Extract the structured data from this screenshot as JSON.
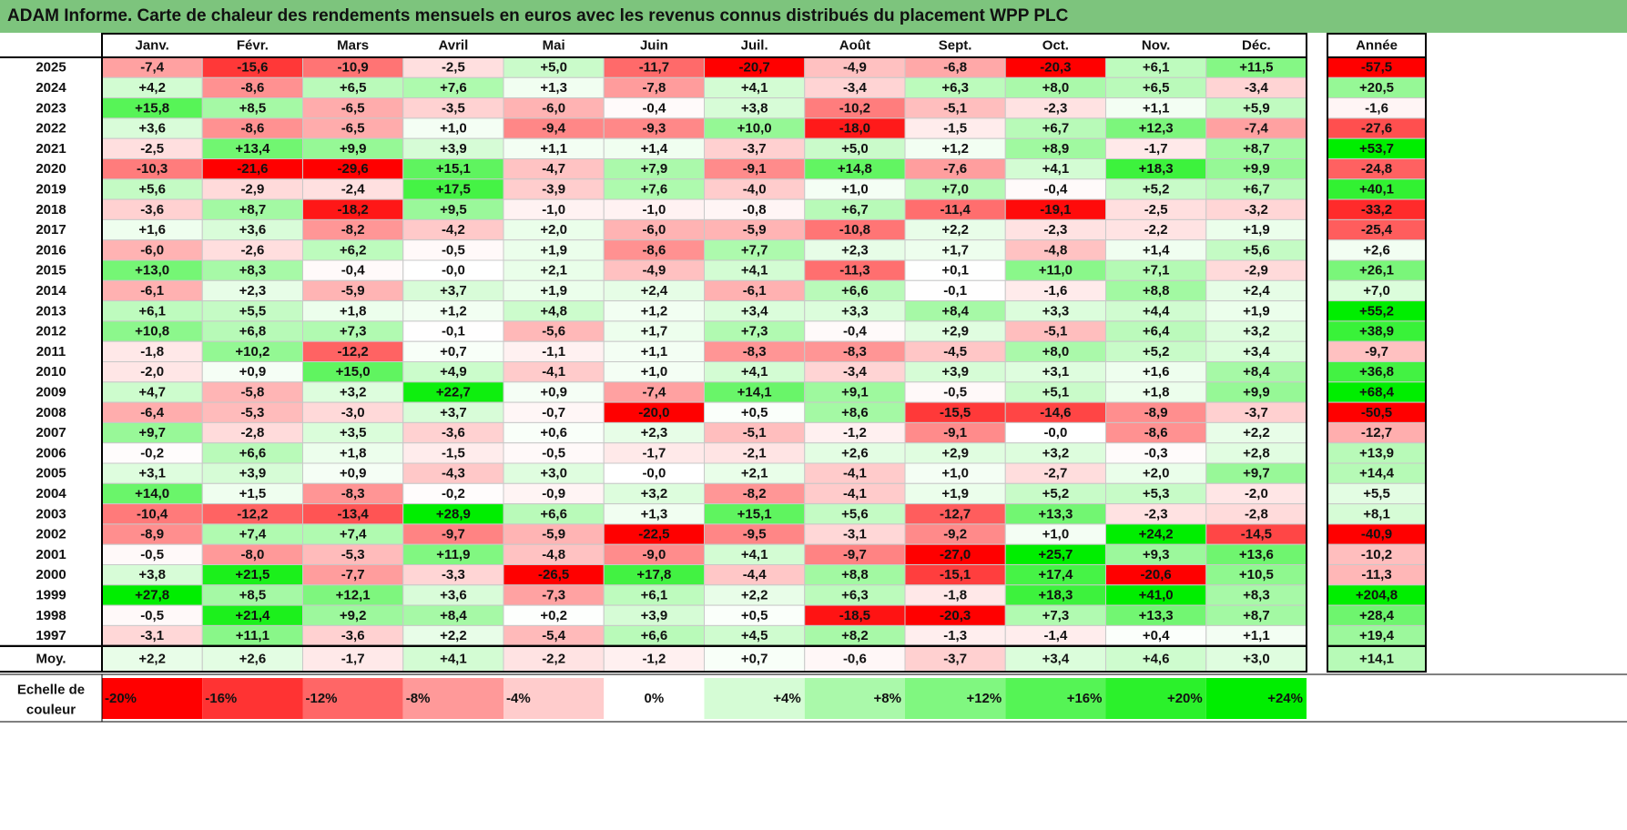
{
  "chart_data": {
    "type": "heatmap",
    "title": "ADAM Informe. Carte de chaleur des rendements mensuels en euros avec les revenus connus distribués du placement WPP PLC",
    "months": [
      "Janv.",
      "Févr.",
      "Mars",
      "Avril",
      "Mai",
      "Juin",
      "Juil.",
      "Août",
      "Sept.",
      "Oct.",
      "Nov.",
      "Déc."
    ],
    "year_header": "Année",
    "years": [
      "2025",
      "2024",
      "2023",
      "2022",
      "2021",
      "2020",
      "2019",
      "2018",
      "2017",
      "2016",
      "2015",
      "2014",
      "2013",
      "2012",
      "2011",
      "2010",
      "2009",
      "2008",
      "2007",
      "2006",
      "2005",
      "2004",
      "2003",
      "2002",
      "2001",
      "2000",
      "1999",
      "1998",
      "1997"
    ],
    "values": [
      [
        "-7,4",
        "-15,6",
        "-10,9",
        "-2,5",
        "+5,0",
        "-11,7",
        "-20,7",
        "-4,9",
        "-6,8",
        "-20,3",
        "+6,1",
        "+11,5"
      ],
      [
        "+4,2",
        "-8,6",
        "+6,5",
        "+7,6",
        "+1,3",
        "-7,8",
        "+4,1",
        "-3,4",
        "+6,3",
        "+8,0",
        "+6,5",
        "-3,4"
      ],
      [
        "+15,8",
        "+8,5",
        "-6,5",
        "-3,5",
        "-6,0",
        "-0,4",
        "+3,8",
        "-10,2",
        "-5,1",
        "-2,3",
        "+1,1",
        "+5,9"
      ],
      [
        "+3,6",
        "-8,6",
        "-6,5",
        "+1,0",
        "-9,4",
        "-9,3",
        "+10,0",
        "-18,0",
        "-1,5",
        "+6,7",
        "+12,3",
        "-7,4"
      ],
      [
        "-2,5",
        "+13,4",
        "+9,9",
        "+3,9",
        "+1,1",
        "+1,4",
        "-3,7",
        "+5,0",
        "+1,2",
        "+8,9",
        "-1,7",
        "+8,7"
      ],
      [
        "-10,3",
        "-21,6",
        "-29,6",
        "+15,1",
        "-4,7",
        "+7,9",
        "-9,1",
        "+14,8",
        "-7,6",
        "+4,1",
        "+18,3",
        "+9,9"
      ],
      [
        "+5,6",
        "-2,9",
        "-2,4",
        "+17,5",
        "-3,9",
        "+7,6",
        "-4,0",
        "+1,0",
        "+7,0",
        "-0,4",
        "+5,2",
        "+6,7"
      ],
      [
        "-3,6",
        "+8,7",
        "-18,2",
        "+9,5",
        "-1,0",
        "-1,0",
        "-0,8",
        "+6,7",
        "-11,4",
        "-19,1",
        "-2,5",
        "-3,2"
      ],
      [
        "+1,6",
        "+3,6",
        "-8,2",
        "-4,2",
        "+2,0",
        "-6,0",
        "-5,9",
        "-10,8",
        "+2,2",
        "-2,3",
        "-2,2",
        "+1,9"
      ],
      [
        "-6,0",
        "-2,6",
        "+6,2",
        "-0,5",
        "+1,9",
        "-8,6",
        "+7,7",
        "+2,3",
        "+1,7",
        "-4,8",
        "+1,4",
        "+5,6"
      ],
      [
        "+13,0",
        "+8,3",
        "-0,4",
        "-0,0",
        "+2,1",
        "-4,9",
        "+4,1",
        "-11,3",
        "+0,1",
        "+11,0",
        "+7,1",
        "-2,9"
      ],
      [
        "-6,1",
        "+2,3",
        "-5,9",
        "+3,7",
        "+1,9",
        "+2,4",
        "-6,1",
        "+6,6",
        "-0,1",
        "-1,6",
        "+8,8",
        "+2,4"
      ],
      [
        "+6,1",
        "+5,5",
        "+1,8",
        "+1,2",
        "+4,8",
        "+1,2",
        "+3,4",
        "+3,3",
        "+8,4",
        "+3,3",
        "+4,4",
        "+1,9"
      ],
      [
        "+10,8",
        "+6,8",
        "+7,3",
        "-0,1",
        "-5,6",
        "+1,7",
        "+7,3",
        "-0,4",
        "+2,9",
        "-5,1",
        "+6,4",
        "+3,2"
      ],
      [
        "-1,8",
        "+10,2",
        "-12,2",
        "+0,7",
        "-1,1",
        "+1,1",
        "-8,3",
        "-8,3",
        "-4,5",
        "+8,0",
        "+5,2",
        "+3,4"
      ],
      [
        "-2,0",
        "+0,9",
        "+15,0",
        "+4,9",
        "-4,1",
        "+1,0",
        "+4,1",
        "-3,4",
        "+3,9",
        "+3,1",
        "+1,6",
        "+8,4"
      ],
      [
        "+4,7",
        "-5,8",
        "+3,2",
        "+22,7",
        "+0,9",
        "-7,4",
        "+14,1",
        "+9,1",
        "-0,5",
        "+5,1",
        "+1,8",
        "+9,9"
      ],
      [
        "-6,4",
        "-5,3",
        "-3,0",
        "+3,7",
        "-0,7",
        "-20,0",
        "+0,5",
        "+8,6",
        "-15,5",
        "-14,6",
        "-8,9",
        "-3,7"
      ],
      [
        "+9,7",
        "-2,8",
        "+3,5",
        "-3,6",
        "+0,6",
        "+2,3",
        "-5,1",
        "-1,2",
        "-9,1",
        "-0,0",
        "-8,6",
        "+2,2"
      ],
      [
        "-0,2",
        "+6,6",
        "+1,8",
        "-1,5",
        "-0,5",
        "-1,7",
        "-2,1",
        "+2,6",
        "+2,9",
        "+3,2",
        "-0,3",
        "+2,8"
      ],
      [
        "+3,1",
        "+3,9",
        "+0,9",
        "-4,3",
        "+3,0",
        "-0,0",
        "+2,1",
        "-4,1",
        "+1,0",
        "-2,7",
        "+2,0",
        "+9,7"
      ],
      [
        "+14,0",
        "+1,5",
        "-8,3",
        "-0,2",
        "-0,9",
        "+3,2",
        "-8,2",
        "-4,1",
        "+1,9",
        "+5,2",
        "+5,3",
        "-2,0"
      ],
      [
        "-10,4",
        "-12,2",
        "-13,4",
        "+28,9",
        "+6,6",
        "+1,3",
        "+15,1",
        "+5,6",
        "-12,7",
        "+13,3",
        "-2,3",
        "-2,8"
      ],
      [
        "-8,9",
        "+7,4",
        "+7,4",
        "-9,7",
        "-5,9",
        "-22,5",
        "-9,5",
        "-3,1",
        "-9,2",
        "+1,0",
        "+24,2",
        "-14,5"
      ],
      [
        "-0,5",
        "-8,0",
        "-5,3",
        "+11,9",
        "-4,8",
        "-9,0",
        "+4,1",
        "-9,7",
        "-27,0",
        "+25,7",
        "+9,3",
        "+13,6"
      ],
      [
        "+3,8",
        "+21,5",
        "-7,7",
        "-3,3",
        "-26,5",
        "+17,8",
        "-4,4",
        "+8,8",
        "-15,1",
        "+17,4",
        "-20,6",
        "+10,5"
      ],
      [
        "+27,8",
        "+8,5",
        "+12,1",
        "+3,6",
        "-7,3",
        "+6,1",
        "+2,2",
        "+6,3",
        "-1,8",
        "+18,3",
        "+41,0",
        "+8,3"
      ],
      [
        "-0,5",
        "+21,4",
        "+9,2",
        "+8,4",
        "+0,2",
        "+3,9",
        "+0,5",
        "-18,5",
        "-20,3",
        "+7,3",
        "+13,3",
        "+8,7"
      ],
      [
        "-3,1",
        "+11,1",
        "-3,6",
        "+2,2",
        "-5,4",
        "+6,6",
        "+4,5",
        "+8,2",
        "-1,3",
        "-1,4",
        "+0,4",
        "+1,1"
      ]
    ],
    "year_totals": [
      "-57,5",
      "+20,5",
      "-1,6",
      "-27,6",
      "+53,7",
      "-24,8",
      "+40,1",
      "-33,2",
      "-25,4",
      "+2,6",
      "+26,1",
      "+7,0",
      "+55,2",
      "+38,9",
      "-9,7",
      "+36,8",
      "+68,4",
      "-50,5",
      "-12,7",
      "+13,9",
      "+14,4",
      "+5,5",
      "+8,1",
      "-40,9",
      "-10,2",
      "-11,3",
      "+204,8",
      "+28,4",
      "+19,4"
    ],
    "avg_label": "Moy.",
    "averages": [
      "+2,2",
      "+2,6",
      "-1,7",
      "+4,1",
      "-2,2",
      "-1,2",
      "+0,7",
      "-0,6",
      "-3,7",
      "+3,4",
      "+4,6",
      "+3,0"
    ],
    "avg_total": "+14,1",
    "scale_label_line1": "Echelle de",
    "scale_label_line2": "couleur",
    "scale": [
      "-20%",
      "-16%",
      "-12%",
      "-8%",
      "-4%",
      "0%",
      "+4%",
      "+8%",
      "+12%",
      "+16%",
      "+20%",
      "+24%"
    ],
    "colors": {
      "negative": "#ff0000",
      "neutral": "#ffffff",
      "positive": "#00ee00",
      "header": "#7dc47d"
    }
  }
}
